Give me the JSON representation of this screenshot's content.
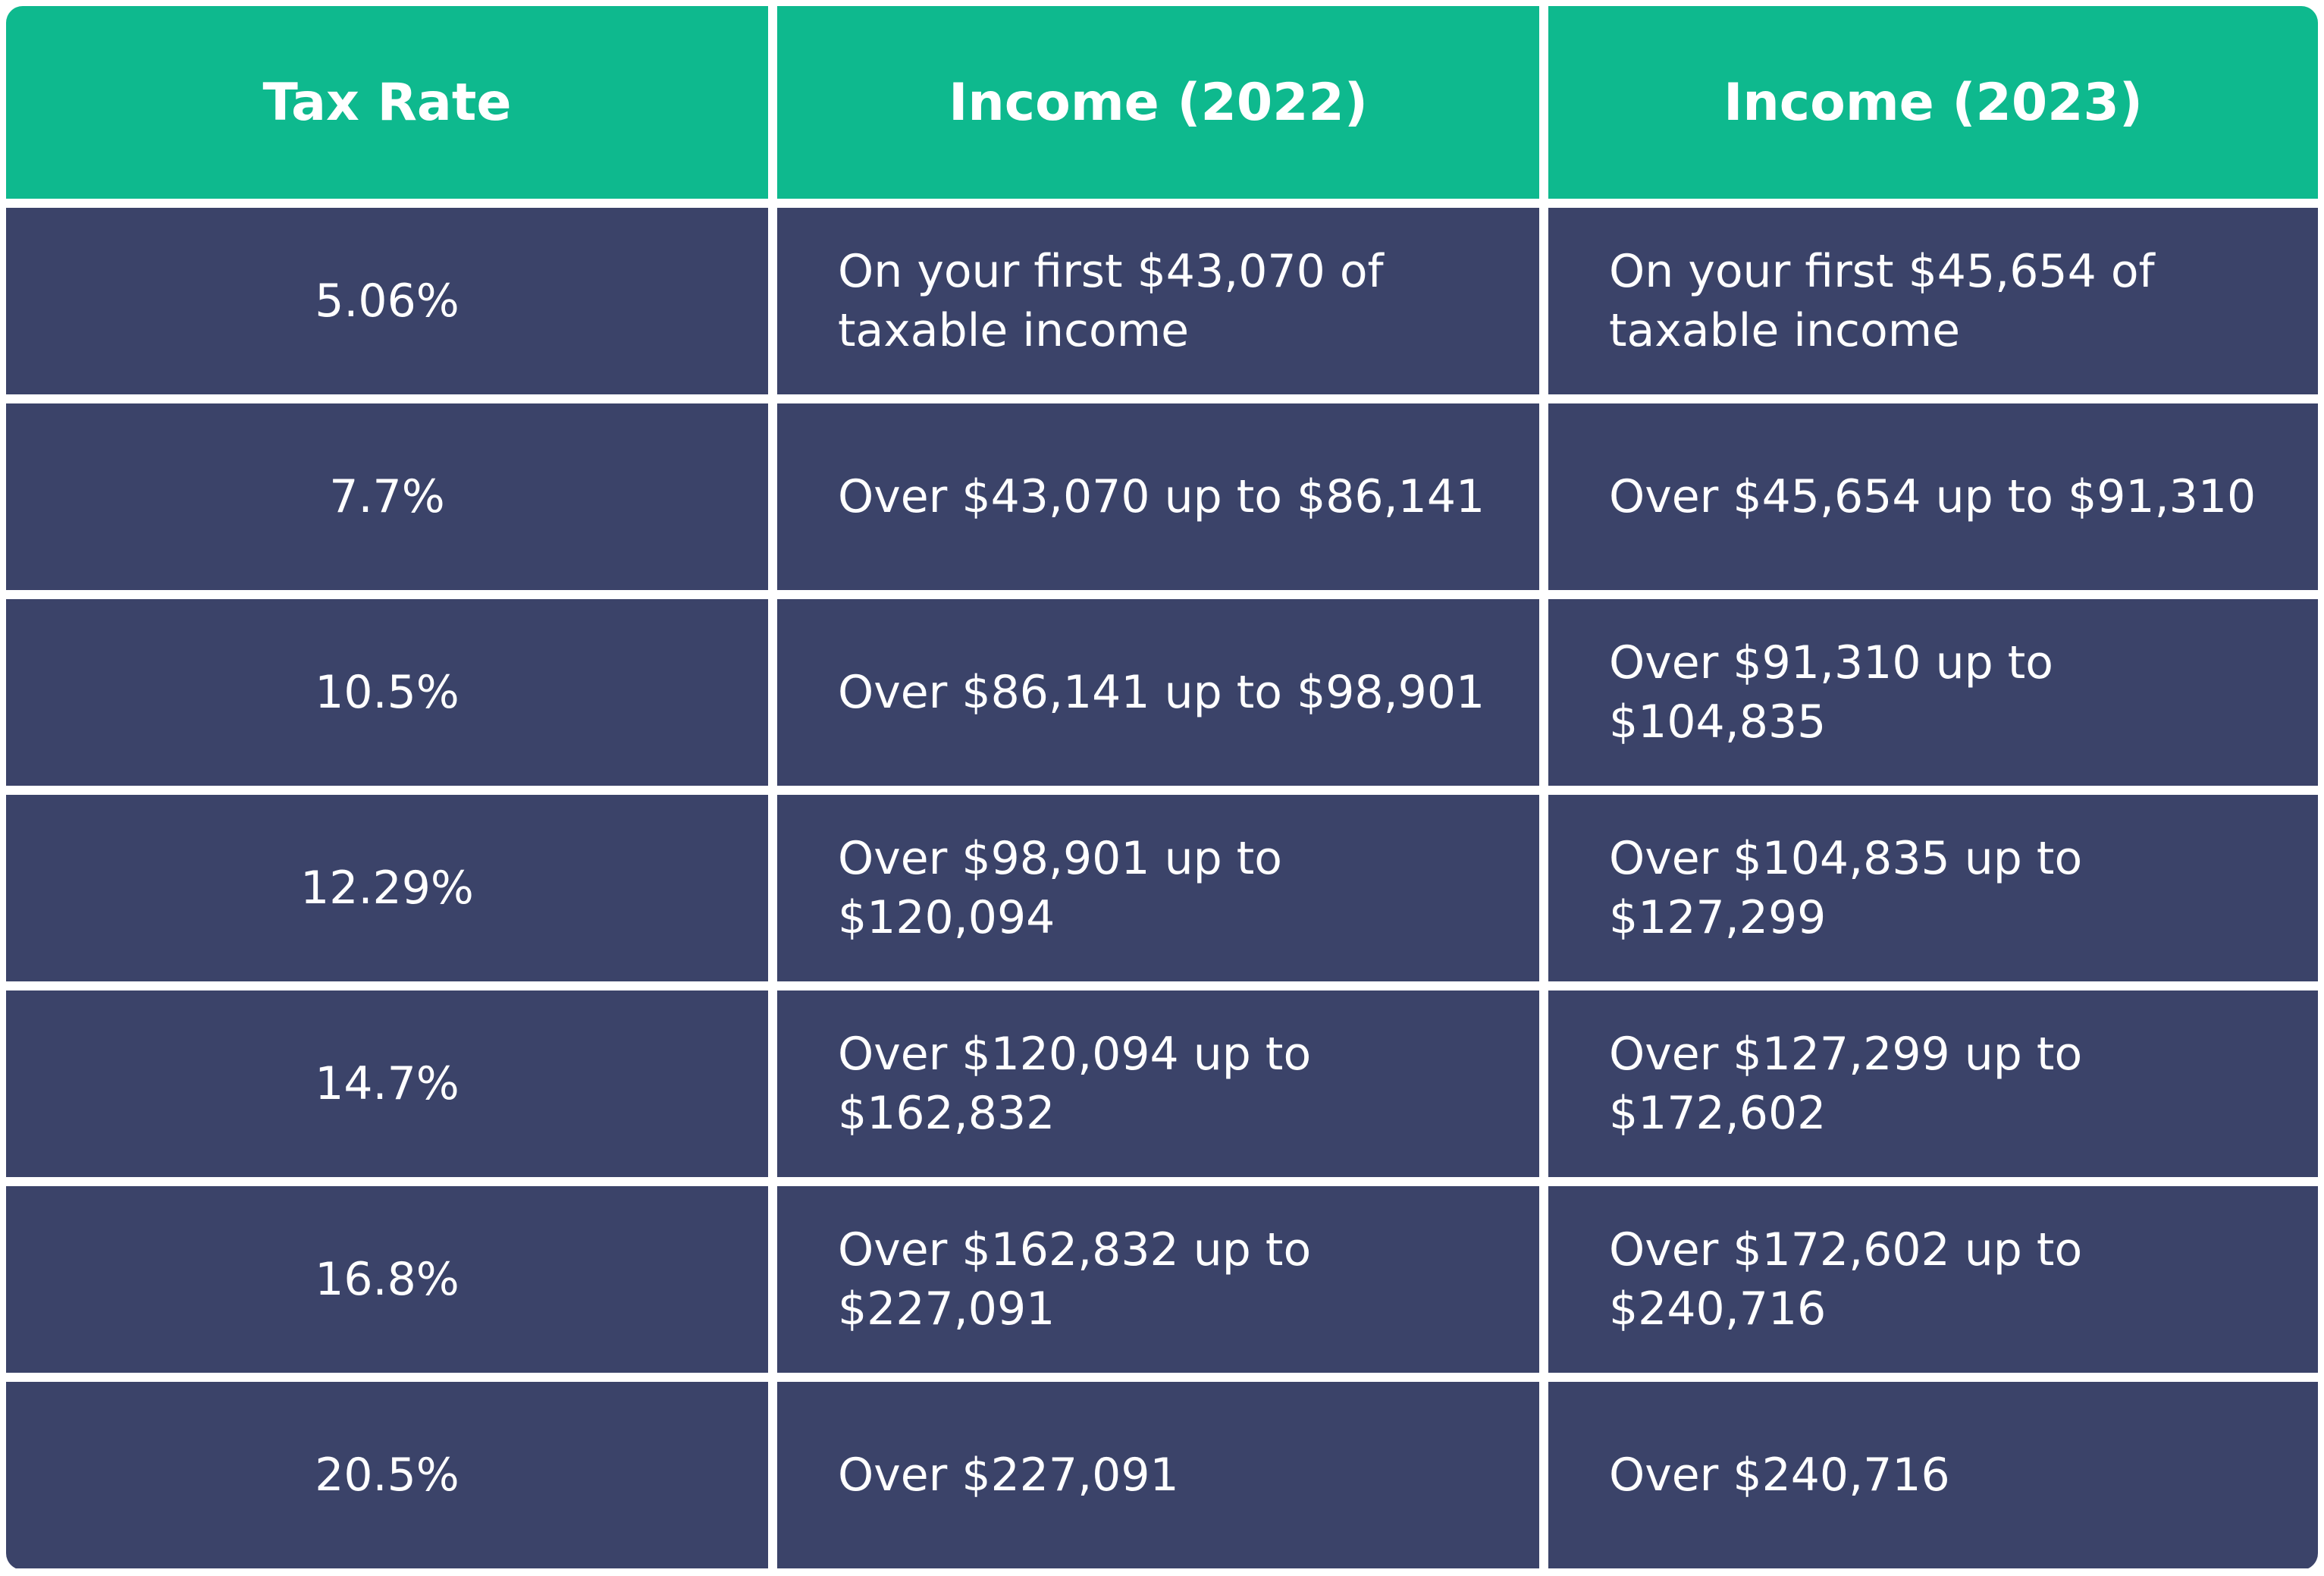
{
  "table": {
    "header": [
      "Tax Rate",
      "Income (2022)",
      "Income (2023)"
    ],
    "rows": [
      [
        "5.06%",
        "On your first $43,070 of taxable income",
        "On your first $45,654 of taxable income"
      ],
      [
        "7.7%",
        "Over $43,070 up to $86,141",
        "Over $45,654 up to $91,310"
      ],
      [
        "10.5%",
        "Over $86,141 up to $98,901",
        "Over $91,310 up to $104,835"
      ],
      [
        "12.29%",
        "Over $98,901 up to $120,094",
        "Over $104,835 up to $127,299"
      ],
      [
        "14.7%",
        "Over $120,094 up to $162,832",
        "Over $127,299 up to $172,602"
      ],
      [
        "16.8%",
        "Over $162,832 up to $227,091",
        "Over $172,602 up to $240,716"
      ],
      [
        "20.5%",
        "Over $227,091",
        "Over $240,716"
      ]
    ]
  }
}
